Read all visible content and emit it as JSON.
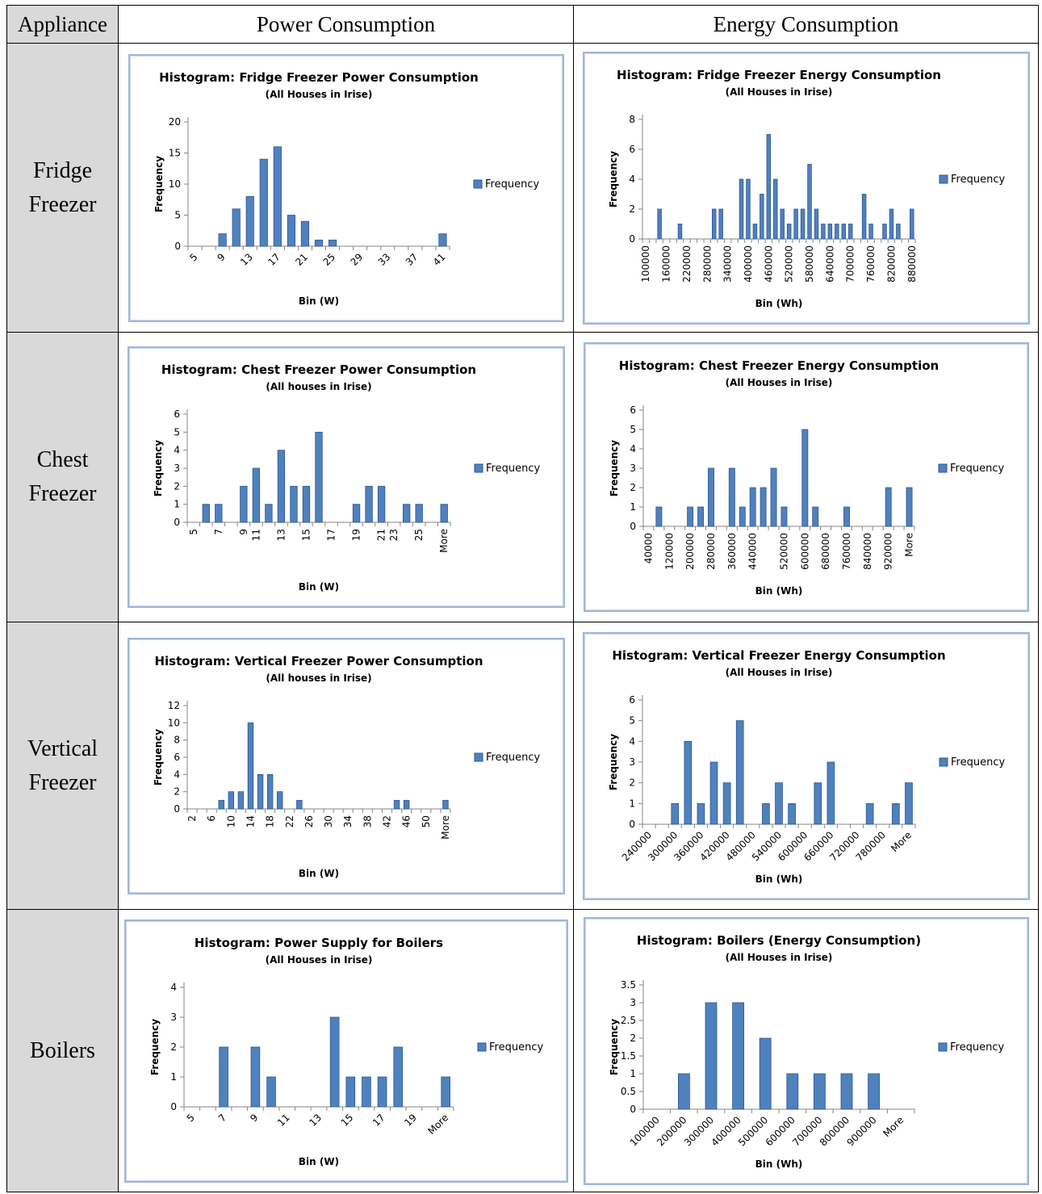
{
  "headers": {
    "appliance": "Appliance",
    "power": "Power Consumption",
    "energy": "Energy Consumption"
  },
  "rows": [
    {
      "name": "Fridge Freezer"
    },
    {
      "name": "Chest Freezer"
    },
    {
      "name": "Vertical Freezer"
    },
    {
      "name": "Boilers"
    }
  ],
  "colors": {
    "bar_fill": "#4f81bd",
    "bar_dark": "#2c5697",
    "frame": "#9fb7d6",
    "gray_cell": "#d9d9d9"
  },
  "chart_data": [
    {
      "type": "bar",
      "title": "Histogram: Fridge Freezer Power Consumption",
      "subtitle": "(All Houses in Irise)",
      "xlabel": "Bin (W)",
      "ylabel": "Frequency",
      "legend": "Frequency",
      "ylim": [
        0,
        20
      ],
      "yticks": [
        0,
        5,
        10,
        15,
        20
      ],
      "tick_labels": [
        "5",
        "9",
        "13",
        "17",
        "21",
        "25",
        "29",
        "33",
        "37",
        "41"
      ],
      "label_rotation": "diagonal",
      "values": [
        0,
        0,
        2,
        6,
        8,
        14,
        16,
        5,
        4,
        1,
        1,
        0,
        0,
        0,
        0,
        0,
        0,
        0,
        2
      ]
    },
    {
      "type": "bar",
      "title": "Histogram: Fridge Freezer Energy Consumption",
      "subtitle": "(All Houses in Irise)",
      "xlabel": "Bin (Wh)",
      "ylabel": "Frequency",
      "legend": "Frequency",
      "ylim": [
        0,
        8
      ],
      "yticks": [
        0,
        2,
        4,
        6,
        8
      ],
      "tick_labels": [
        "100000",
        "160000",
        "220000",
        "280000",
        "340000",
        "400000",
        "460000",
        "520000",
        "580000",
        "640000",
        "700000",
        "760000",
        "820000",
        "880000"
      ],
      "label_rotation": "vertical",
      "values": [
        0,
        0,
        2,
        0,
        0,
        1,
        0,
        0,
        0,
        0,
        2,
        2,
        0,
        0,
        4,
        4,
        1,
        3,
        7,
        4,
        2,
        1,
        2,
        2,
        5,
        2,
        1,
        1,
        1,
        1,
        1,
        0,
        3,
        1,
        0,
        1,
        2,
        1,
        0,
        2
      ]
    },
    {
      "type": "bar",
      "title": "Histogram: Chest Freezer Power Consumption",
      "subtitle": "(All houses in Irise)",
      "xlabel": "Bin (W)",
      "ylabel": "Frequency",
      "legend": "Frequency",
      "ylim": [
        0,
        6
      ],
      "yticks": [
        0,
        1,
        2,
        3,
        4,
        5,
        6
      ],
      "tick_labels": [
        "5",
        "7",
        "9",
        "11",
        "13",
        "15",
        "17",
        "19",
        "21",
        "23",
        "25",
        "More"
      ],
      "label_rotation": "vertical",
      "values": [
        0,
        1,
        1,
        0,
        2,
        3,
        1,
        4,
        2,
        2,
        5,
        0,
        0,
        1,
        2,
        2,
        0,
        1,
        1,
        0,
        1
      ]
    },
    {
      "type": "bar",
      "title": "Histogram: Chest Freezer Energy Consumption",
      "subtitle": "(All Houses in Irise)",
      "xlabel": "Bin (Wh)",
      "ylabel": "Frequency",
      "legend": "Frequency",
      "ylim": [
        0,
        6
      ],
      "yticks": [
        0,
        1,
        2,
        3,
        4,
        5,
        6
      ],
      "tick_labels": [
        "40000",
        "120000",
        "200000",
        "280000",
        "360000",
        "440000",
        "520000",
        "600000",
        "680000",
        "760000",
        "840000",
        "920000",
        "More"
      ],
      "label_rotation": "vertical",
      "values": [
        0,
        1,
        0,
        0,
        1,
        1,
        3,
        0,
        3,
        1,
        2,
        2,
        3,
        1,
        0,
        5,
        1,
        0,
        0,
        1,
        0,
        0,
        0,
        2,
        0,
        2
      ]
    },
    {
      "type": "bar",
      "title": "Histogram: Vertical Freezer Power Consumption",
      "subtitle": "(All houses in Irise)",
      "xlabel": "Bin (W)",
      "ylabel": "Frequency",
      "legend": "Frequency",
      "ylim": [
        0,
        12
      ],
      "yticks": [
        0,
        2,
        4,
        6,
        8,
        10,
        12
      ],
      "tick_labels": [
        "2",
        "6",
        "10",
        "14",
        "18",
        "22",
        "26",
        "30",
        "34",
        "38",
        "42",
        "46",
        "50",
        "More"
      ],
      "label_rotation": "vertical",
      "values": [
        0,
        0,
        0,
        1,
        2,
        2,
        10,
        4,
        4,
        2,
        0,
        1,
        0,
        0,
        0,
        0,
        0,
        0,
        0,
        0,
        0,
        1,
        1,
        0,
        0,
        0,
        1
      ]
    },
    {
      "type": "bar",
      "title": "Histogram: Vertical Freezer Energy Consumption",
      "subtitle": "(All Houses in Irise)",
      "xlabel": "Bin (Wh)",
      "ylabel": "Frequency",
      "legend": "Frequency",
      "ylim": [
        0,
        6
      ],
      "yticks": [
        0,
        1,
        2,
        3,
        4,
        5,
        6
      ],
      "tick_labels": [
        "240000",
        "300000",
        "360000",
        "420000",
        "480000",
        "540000",
        "600000",
        "660000",
        "720000",
        "780000",
        "More"
      ],
      "label_rotation": "diagonal",
      "values": [
        0,
        0,
        1,
        4,
        1,
        3,
        2,
        5,
        0,
        1,
        2,
        1,
        0,
        2,
        3,
        0,
        0,
        1,
        0,
        1,
        2
      ]
    },
    {
      "type": "bar",
      "title": "Histogram: Power Supply for Boilers",
      "subtitle": "(All Houses in Irise)",
      "xlabel": "Bin (W)",
      "ylabel": "Frequency",
      "legend": "Frequency",
      "ylim": [
        0,
        4
      ],
      "yticks": [
        0,
        1,
        2,
        3,
        4
      ],
      "tick_labels": [
        "5",
        "7",
        "9",
        "11",
        "13",
        "15",
        "17",
        "19",
        "More"
      ],
      "label_rotation": "diagonal",
      "values": [
        0,
        0,
        2,
        0,
        2,
        1,
        0,
        0,
        0,
        3,
        1,
        1,
        1,
        2,
        0,
        0,
        1
      ]
    },
    {
      "type": "bar",
      "title": "Histogram: Boilers (Energy Consumption)",
      "subtitle": "(All Houses in Irise)",
      "xlabel": "Bin (Wh)",
      "ylabel": "Frequency",
      "legend": "Frequency",
      "ylim": [
        0,
        3.5
      ],
      "yticks": [
        0,
        0.5,
        1,
        1.5,
        2,
        2.5,
        3,
        3.5
      ],
      "tick_labels": [
        "100000",
        "200000",
        "300000",
        "400000",
        "500000",
        "600000",
        "700000",
        "800000",
        "900000",
        "More"
      ],
      "label_rotation": "diagonal",
      "values": [
        0,
        1,
        3,
        3,
        2,
        1,
        1,
        1,
        1,
        0
      ]
    }
  ]
}
